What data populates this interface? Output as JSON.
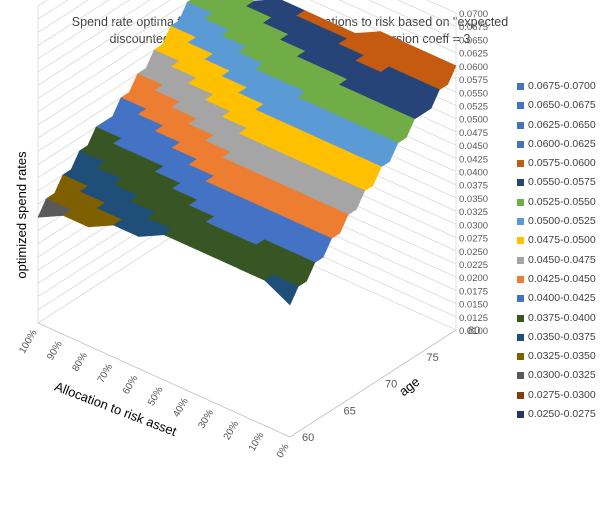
{
  "chart_data": {
    "type": "surface",
    "title": [
      "Spend rate optima for different ages and allocations to risk based on \"expected",
      "discounted utility of lifetime consumption\" - risk aversion coeff = 3"
    ],
    "zlabel": "optimized spend rates",
    "xlabel": "Allocation to risk asset",
    "ylabel": "age",
    "allocation_ticks": [
      "100%",
      "90%",
      "80%",
      "70%",
      "60%",
      "50%",
      "40%",
      "30%",
      "20%",
      "10%",
      "0%"
    ],
    "age_ticks": [
      "60",
      "65",
      "70",
      "75",
      "80"
    ],
    "z_ticks": [
      "0.0100",
      "0.0125",
      "0.0150",
      "0.0175",
      "0.0200",
      "0.0225",
      "0.0250",
      "0.0275",
      "0.0300",
      "0.0325",
      "0.0350",
      "0.0375",
      "0.0400",
      "0.0425",
      "0.0450",
      "0.0475",
      "0.0500",
      "0.0525",
      "0.0550",
      "0.0575",
      "0.0600",
      "0.0625",
      "0.0650",
      "0.0675",
      "0.0700"
    ],
    "zlim": [
      0.01,
      0.07
    ],
    "legend": [
      {
        "label": "0.0675-0.0700",
        "color": "#4472C4"
      },
      {
        "label": "0.0650-0.0675",
        "color": "#4472C4"
      },
      {
        "label": "0.0625-0.0650",
        "color": "#4472C4"
      },
      {
        "label": "0.0600-0.0625",
        "color": "#4472C4"
      },
      {
        "label": "0.0575-0.0600",
        "color": "#C55A11"
      },
      {
        "label": "0.0550-0.0575",
        "color": "#264478"
      },
      {
        "label": "0.0525-0.0550",
        "color": "#70AD47"
      },
      {
        "label": "0.0500-0.0525",
        "color": "#5B9BD5"
      },
      {
        "label": "0.0475-0.0500",
        "color": "#FFC000"
      },
      {
        "label": "0.0450-0.0475",
        "color": "#A5A5A5"
      },
      {
        "label": "0.0425-0.0450",
        "color": "#ED7D31"
      },
      {
        "label": "0.0400-0.0425",
        "color": "#4472C4"
      },
      {
        "label": "0.0375-0.0400",
        "color": "#375623"
      },
      {
        "label": "0.0350-0.0375",
        "color": "#1F4E79"
      },
      {
        "label": "0.0325-0.0350",
        "color": "#7F6000"
      },
      {
        "label": "0.0300-0.0325",
        "color": "#595959"
      },
      {
        "label": "0.0275-0.0300",
        "color": "#843C0C"
      },
      {
        "label": "0.0250-0.0275",
        "color": "#203864"
      }
    ],
    "ages": [
      60,
      61,
      62,
      63,
      64,
      65,
      66,
      67,
      68,
      69,
      70,
      71,
      72,
      73,
      74,
      75,
      76,
      77,
      78,
      79,
      80
    ],
    "allocations": [
      "0%",
      "10%",
      "20%",
      "30%",
      "40%",
      "50%",
      "60%",
      "70%",
      "80%",
      "90%",
      "100%"
    ],
    "z_matrix": [
      [
        0.035,
        0.0375,
        0.0375,
        0.0375,
        0.0375,
        0.0375,
        0.035,
        0.035,
        0.0325,
        0.0325,
        0.03
      ],
      [
        0.0375,
        0.0375,
        0.0375,
        0.0375,
        0.0375,
        0.0375,
        0.0375,
        0.035,
        0.035,
        0.0325,
        0.0325
      ],
      [
        0.0375,
        0.0375,
        0.04,
        0.04,
        0.04,
        0.0375,
        0.0375,
        0.0375,
        0.035,
        0.035,
        0.0325
      ],
      [
        0.04,
        0.04,
        0.04,
        0.04,
        0.04,
        0.04,
        0.0375,
        0.0375,
        0.0375,
        0.035,
        0.035
      ],
      [
        0.04,
        0.04,
        0.04,
        0.0425,
        0.04,
        0.04,
        0.04,
        0.0375,
        0.0375,
        0.0375,
        0.035
      ],
      [
        0.0425,
        0.0425,
        0.0425,
        0.0425,
        0.0425,
        0.0425,
        0.04,
        0.04,
        0.0375,
        0.0375,
        0.0375
      ],
      [
        0.0425,
        0.0425,
        0.0425,
        0.0425,
        0.0425,
        0.0425,
        0.0425,
        0.04,
        0.04,
        0.04,
        0.0375
      ],
      [
        0.045,
        0.045,
        0.045,
        0.045,
        0.045,
        0.045,
        0.0425,
        0.0425,
        0.04,
        0.04,
        0.04
      ],
      [
        0.045,
        0.045,
        0.045,
        0.0475,
        0.045,
        0.045,
        0.045,
        0.0425,
        0.0425,
        0.04,
        0.04
      ],
      [
        0.0475,
        0.0475,
        0.0475,
        0.0475,
        0.0475,
        0.0475,
        0.045,
        0.045,
        0.0425,
        0.0425,
        0.04
      ],
      [
        0.0475,
        0.0475,
        0.0475,
        0.0475,
        0.0475,
        0.0475,
        0.0475,
        0.045,
        0.045,
        0.0425,
        0.0425
      ],
      [
        0.05,
        0.05,
        0.05,
        0.05,
        0.05,
        0.05,
        0.0475,
        0.0475,
        0.045,
        0.045,
        0.0425
      ],
      [
        0.05,
        0.05,
        0.05,
        0.05,
        0.05,
        0.05,
        0.05,
        0.0475,
        0.0475,
        0.045,
        0.045
      ],
      [
        0.0525,
        0.0525,
        0.0525,
        0.0525,
        0.0525,
        0.05,
        0.05,
        0.05,
        0.0475,
        0.0475,
        0.045
      ],
      [
        0.0525,
        0.0525,
        0.0525,
        0.0525,
        0.0525,
        0.0525,
        0.0525,
        0.05,
        0.05,
        0.0475,
        0.0475
      ],
      [
        0.055,
        0.055,
        0.055,
        0.055,
        0.0525,
        0.0525,
        0.0525,
        0.0525,
        0.05,
        0.05,
        0.0475
      ],
      [
        0.055,
        0.055,
        0.055,
        0.055,
        0.055,
        0.055,
        0.0525,
        0.0525,
        0.0525,
        0.05,
        0.05
      ],
      [
        0.055,
        0.055,
        0.0575,
        0.0575,
        0.055,
        0.055,
        0.055,
        0.0525,
        0.0525,
        0.0525,
        0.05
      ],
      [
        0.0575,
        0.0575,
        0.0575,
        0.0575,
        0.0575,
        0.055,
        0.055,
        0.055,
        0.0525,
        0.0525,
        0.0525
      ],
      [
        0.0575,
        0.0575,
        0.0575,
        0.0575,
        0.0575,
        0.0575,
        0.0575,
        0.055,
        0.055,
        0.0525,
        0.0525
      ],
      [
        0.06,
        0.06,
        0.06,
        0.06,
        0.0575,
        0.0575,
        0.0575,
        0.0575,
        0.055,
        0.055,
        0.055
      ]
    ]
  }
}
